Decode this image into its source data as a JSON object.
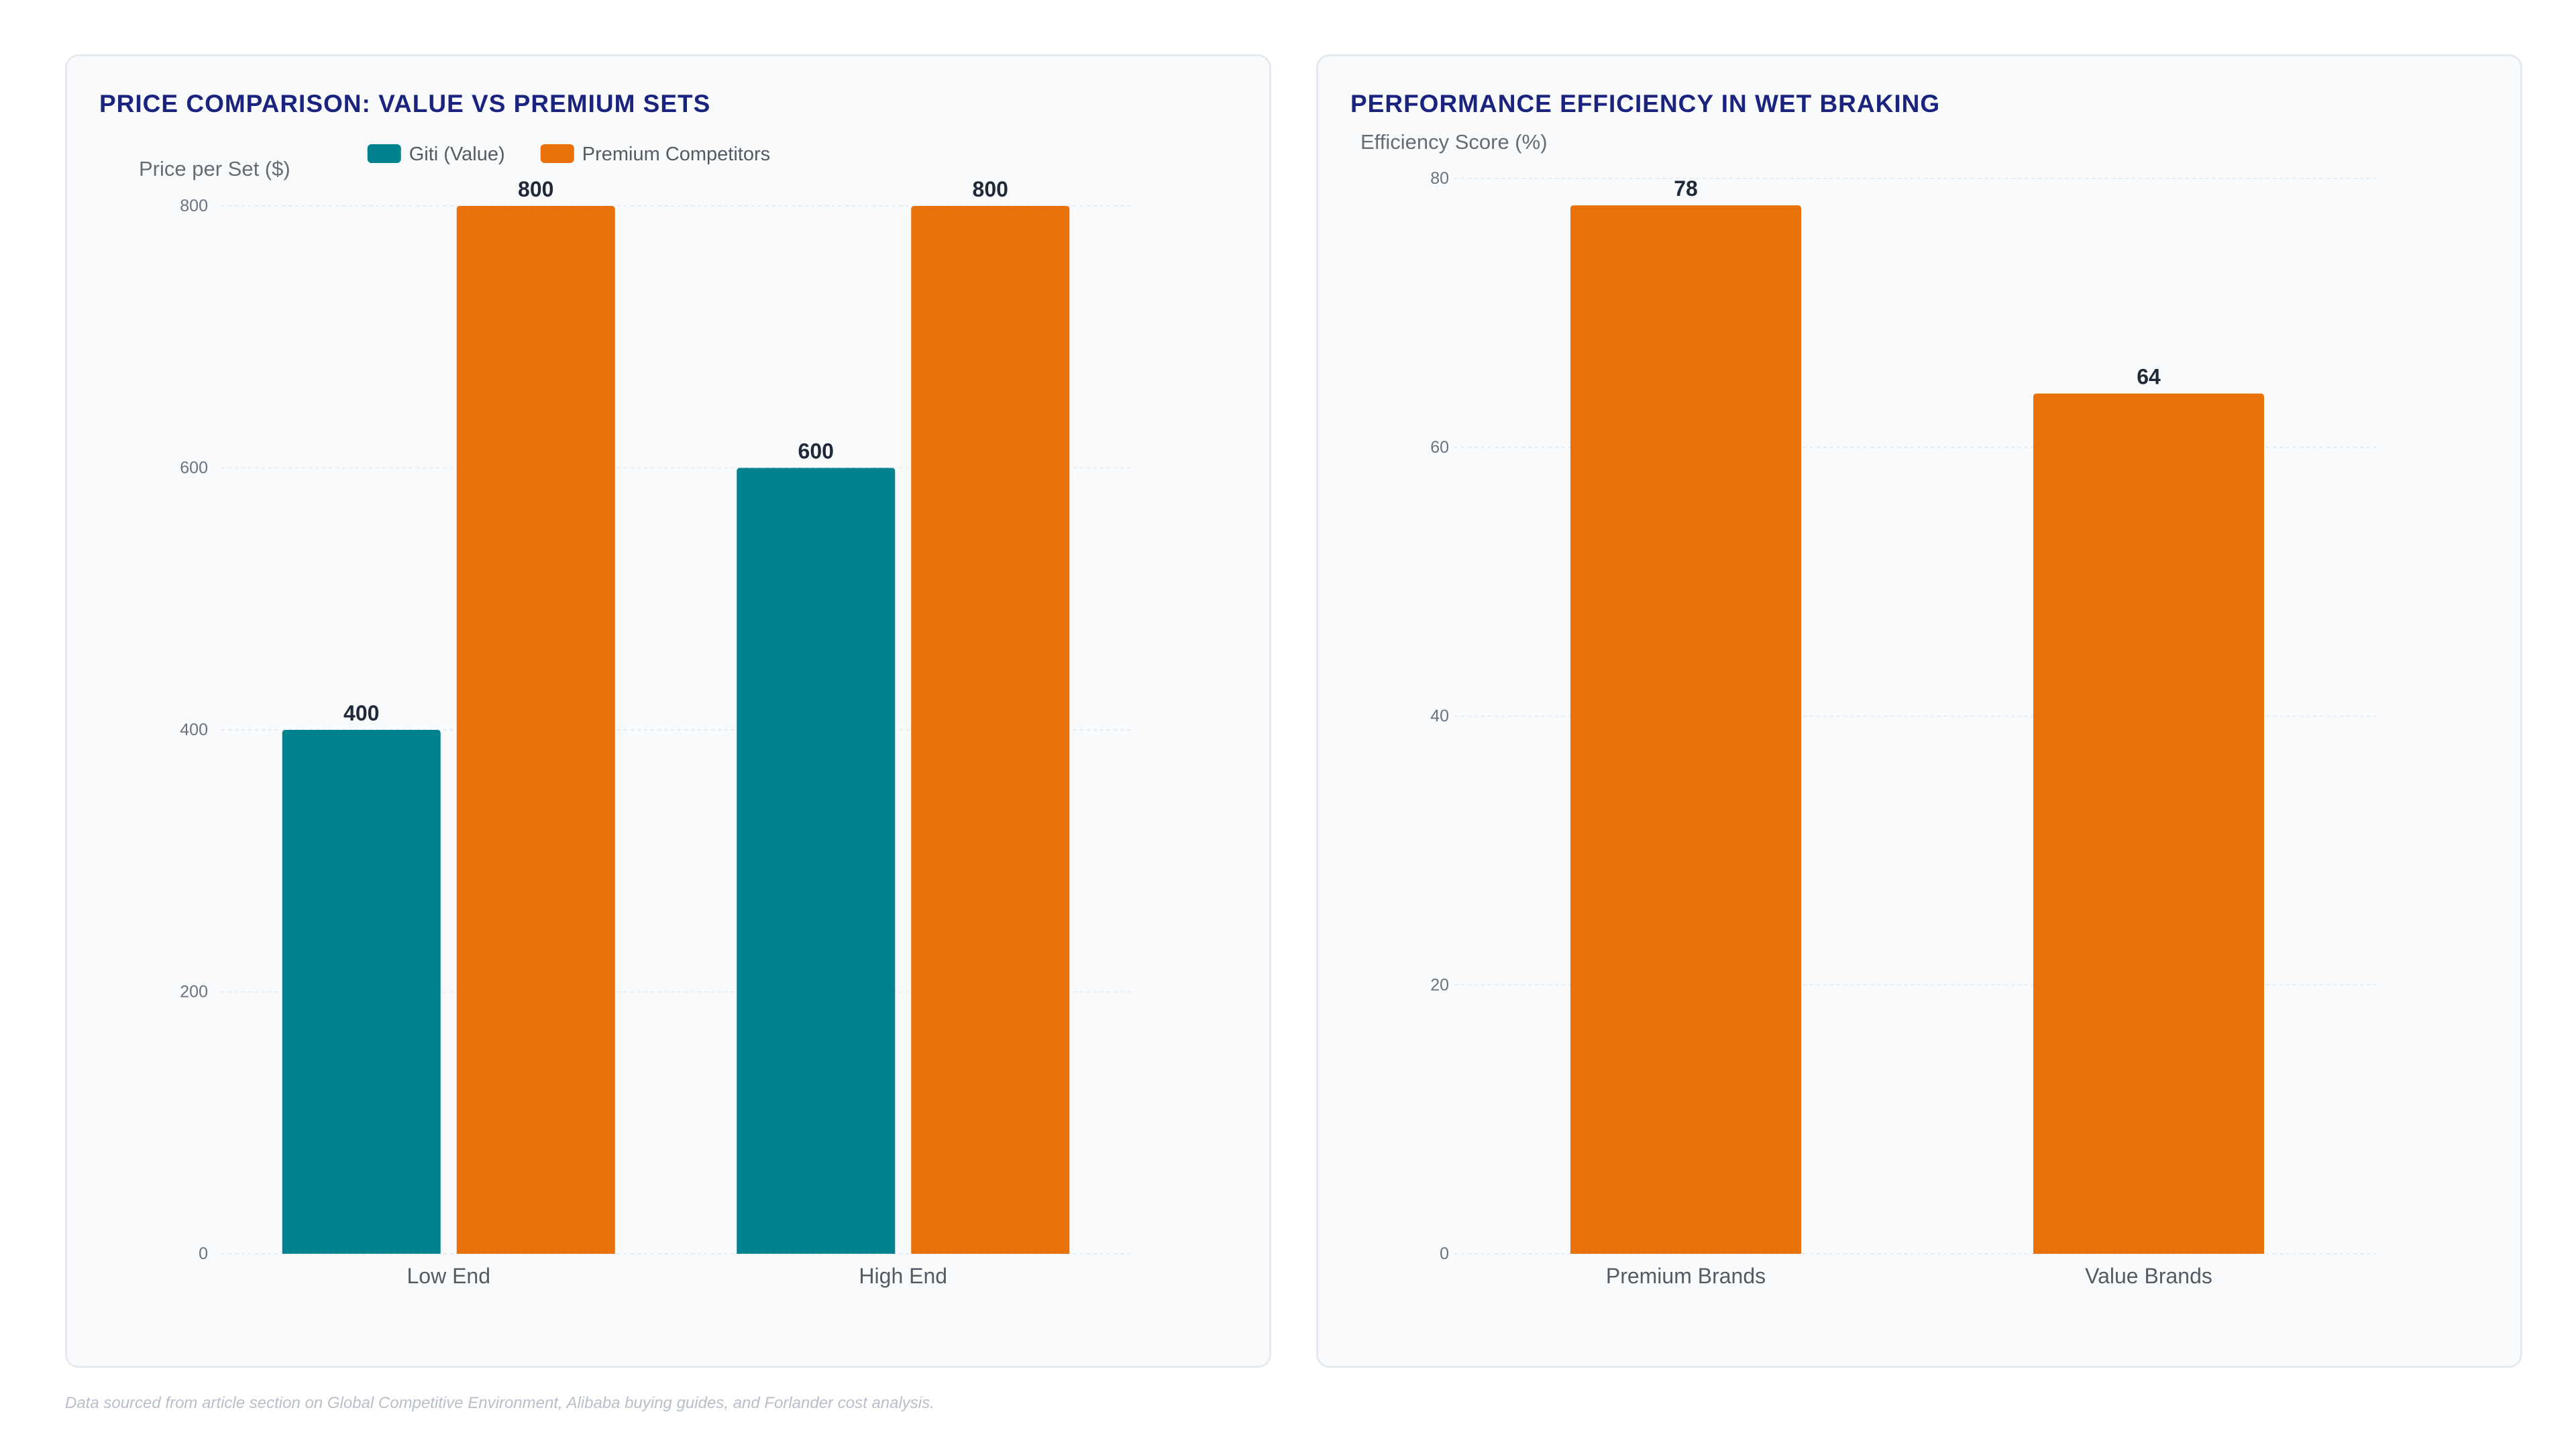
{
  "chart_data": [
    {
      "type": "bar",
      "title": "PRICE COMPARISON: VALUE VS PREMIUM SETS",
      "xlabel": "",
      "ylabel": "Price per Set ($)",
      "categories": [
        "Low End",
        "High End"
      ],
      "series": [
        {
          "name": "Giti (Value)",
          "values": [
            400,
            600
          ],
          "color": "#00838f"
        },
        {
          "name": "Premium Competitors",
          "values": [
            800,
            800
          ],
          "color": "#e8710a"
        }
      ],
      "ylim": [
        0,
        800
      ],
      "yticks": [
        0,
        200,
        400,
        600,
        800
      ],
      "grid": true,
      "legend": "top-center",
      "data_labels": true
    },
    {
      "type": "bar",
      "title": "PERFORMANCE EFFICIENCY IN WET BRAKING",
      "xlabel": "",
      "ylabel": "Efficiency Score (%)",
      "categories": [
        "Premium Brands",
        "Value Brands"
      ],
      "series": [
        {
          "values": [
            78,
            64
          ],
          "color": "#e8710a"
        }
      ],
      "ylim": [
        0,
        80
      ],
      "yticks": [
        0,
        20,
        40,
        60,
        80
      ],
      "grid": true,
      "legend": "none",
      "data_labels": true
    }
  ],
  "footer": {
    "note": "Data sourced from article section on Global Competitive Environment, Alibaba buying guides, and Forlander cost analysis."
  }
}
